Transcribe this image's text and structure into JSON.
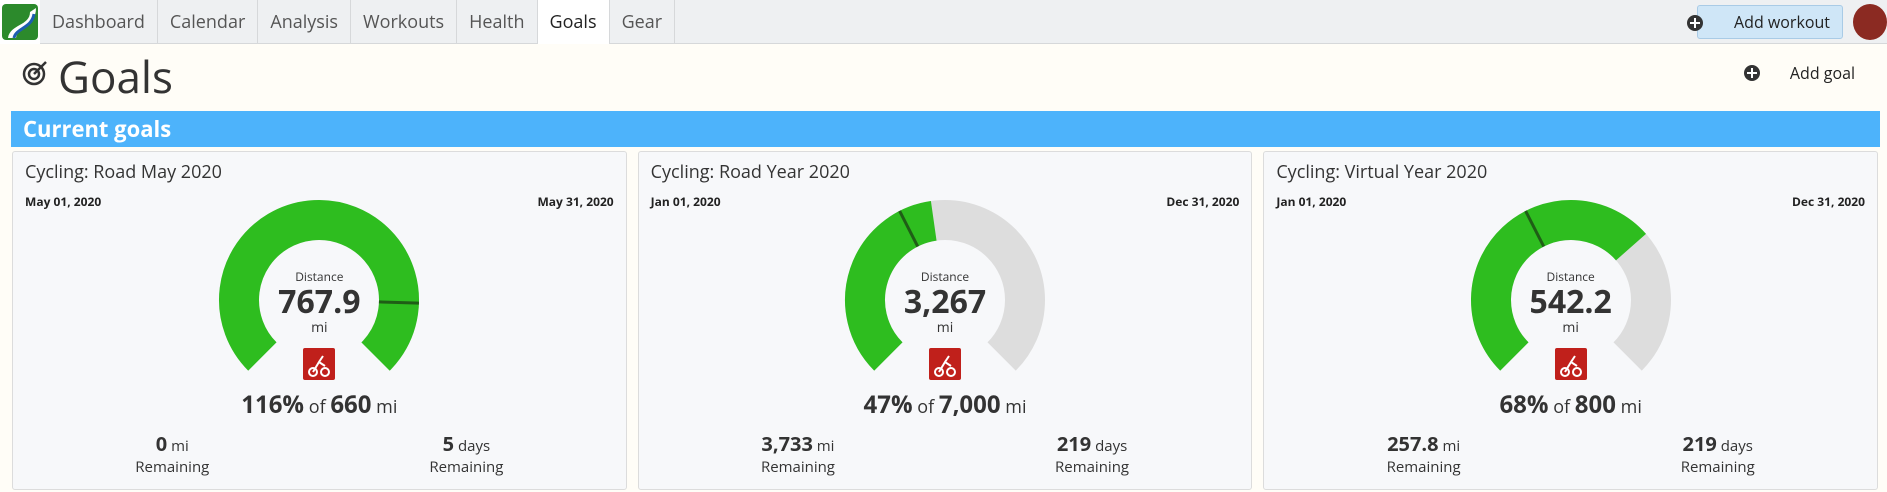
{
  "nav": {
    "tabs": [
      "Dashboard",
      "Calendar",
      "Analysis",
      "Workouts",
      "Health",
      "Goals",
      "Gear"
    ],
    "add_workout": "Add workout"
  },
  "header": {
    "title": "Goals",
    "add_goal": "Add goal"
  },
  "section": {
    "title": "Current goals"
  },
  "goals": [
    {
      "title": "Cycling: Road May 2020",
      "start_date": "May 01, 2020",
      "end_date": "May 31, 2020",
      "metric": "Distance",
      "value": "767.9",
      "unit": "mi",
      "percent": {
        "value": 116,
        "label": "116%"
      },
      "of": "of",
      "target": "660",
      "target_unit": "mi",
      "remaining_distance": "0",
      "remaining_distance_unit": "mi",
      "remaining_distance_label": "Remaining",
      "remaining_days": "5",
      "remaining_days_unit": "days",
      "remaining_days_label": "Remaining",
      "elapsed": 84
    },
    {
      "title": "Cycling: Road Year 2020",
      "start_date": "Jan 01, 2020",
      "end_date": "Dec 31, 2020",
      "metric": "Distance",
      "value": "3,267",
      "unit": "mi",
      "percent": {
        "value": 47,
        "label": "47%"
      },
      "of": "of",
      "target": "7,000",
      "target_unit": "mi",
      "remaining_distance": "3,733",
      "remaining_distance_unit": "mi",
      "remaining_distance_label": "Remaining",
      "remaining_days": "219",
      "remaining_days_unit": "days",
      "remaining_days_label": "Remaining",
      "elapsed": 40
    },
    {
      "title": "Cycling: Virtual Year 2020",
      "start_date": "Jan 01, 2020",
      "end_date": "Dec 31, 2020",
      "metric": "Distance",
      "value": "542.2",
      "unit": "mi",
      "percent": {
        "value": 68,
        "label": "68%"
      },
      "of": "of",
      "target": "800",
      "target_unit": "mi",
      "remaining_distance": "257.8",
      "remaining_distance_unit": "mi",
      "remaining_distance_label": "Remaining",
      "remaining_days": "219",
      "remaining_days_unit": "days",
      "remaining_days_label": "Remaining",
      "elapsed": 40
    }
  ]
}
